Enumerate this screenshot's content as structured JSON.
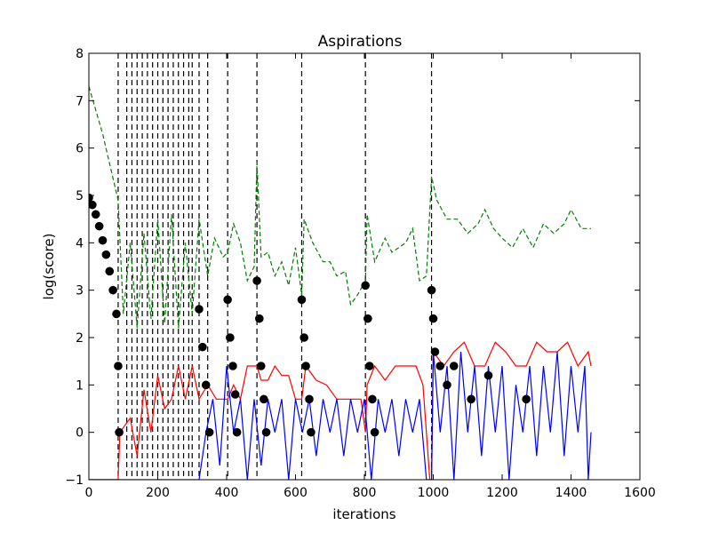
{
  "chart_data": {
    "type": "line",
    "title": "Aspirations",
    "xlabel": "iterations",
    "ylabel": "log(score)",
    "xlim": [
      0,
      1600
    ],
    "ylim": [
      -1,
      8
    ],
    "x_ticks": [
      0,
      200,
      400,
      600,
      800,
      1000,
      1200,
      1400,
      1600
    ],
    "y_ticks": [
      -1,
      0,
      1,
      2,
      3,
      4,
      5,
      6,
      7,
      8
    ],
    "grid": false,
    "legend": "none",
    "colors": {
      "red_series": "#ff0000",
      "blue_series": "#0000ff",
      "green_series": "#008000",
      "markers": "#000000",
      "restart_lines": "#000000"
    },
    "restart_iterations": [
      85,
      110,
      125,
      140,
      155,
      170,
      185,
      200,
      215,
      230,
      245,
      260,
      275,
      290,
      300,
      320,
      345,
      403,
      488,
      618,
      803,
      995
    ],
    "series": [
      {
        "style": "dashed",
        "color": "green",
        "points": [
          [
            0,
            7.3
          ],
          [
            40,
            6.3
          ],
          [
            85,
            4.9
          ],
          [
            100,
            2.5
          ],
          [
            120,
            4.0
          ],
          [
            140,
            2.2
          ],
          [
            160,
            4.2
          ],
          [
            180,
            2.4
          ],
          [
            200,
            4.5
          ],
          [
            220,
            2.3
          ],
          [
            240,
            4.6
          ],
          [
            260,
            2.2
          ],
          [
            280,
            4.0
          ],
          [
            300,
            2.5
          ],
          [
            320,
            4.5
          ],
          [
            345,
            3.3
          ],
          [
            365,
            4.1
          ],
          [
            390,
            3.7
          ],
          [
            403,
            3.8
          ],
          [
            420,
            4.4
          ],
          [
            440,
            4.0
          ],
          [
            460,
            3.2
          ],
          [
            480,
            3.5
          ],
          [
            488,
            5.7
          ],
          [
            500,
            3.7
          ],
          [
            520,
            3.8
          ],
          [
            540,
            3.3
          ],
          [
            560,
            3.6
          ],
          [
            580,
            3.1
          ],
          [
            600,
            3.9
          ],
          [
            618,
            2.9
          ],
          [
            625,
            4.5
          ],
          [
            650,
            4.0
          ],
          [
            680,
            3.6
          ],
          [
            700,
            3.6
          ],
          [
            720,
            3.3
          ],
          [
            745,
            3.4
          ],
          [
            760,
            2.7
          ],
          [
            780,
            2.9
          ],
          [
            803,
            3.2
          ],
          [
            808,
            4.6
          ],
          [
            830,
            3.6
          ],
          [
            860,
            4.1
          ],
          [
            880,
            3.8
          ],
          [
            900,
            3.9
          ],
          [
            920,
            4.0
          ],
          [
            940,
            4.3
          ],
          [
            960,
            3.2
          ],
          [
            980,
            3.3
          ],
          [
            995,
            5.4
          ],
          [
            1010,
            4.9
          ],
          [
            1040,
            4.5
          ],
          [
            1070,
            4.5
          ],
          [
            1100,
            4.2
          ],
          [
            1130,
            4.4
          ],
          [
            1150,
            4.7
          ],
          [
            1175,
            4.3
          ],
          [
            1200,
            4.1
          ],
          [
            1230,
            3.9
          ],
          [
            1260,
            4.3
          ],
          [
            1290,
            3.9
          ],
          [
            1320,
            4.4
          ],
          [
            1350,
            4.2
          ],
          [
            1380,
            4.4
          ],
          [
            1400,
            4.7
          ],
          [
            1430,
            4.3
          ],
          [
            1458,
            4.3
          ]
        ]
      },
      {
        "style": "solid",
        "color": "red",
        "points": [
          [
            0,
            -1
          ],
          [
            85,
            -1
          ],
          [
            90,
            0.0
          ],
          [
            120,
            0.3
          ],
          [
            140,
            -0.5
          ],
          [
            160,
            0.9
          ],
          [
            180,
            0.0
          ],
          [
            200,
            1.2
          ],
          [
            220,
            0.5
          ],
          [
            240,
            0.7
          ],
          [
            260,
            1.4
          ],
          [
            280,
            0.7
          ],
          [
            300,
            1.4
          ],
          [
            320,
            0.7
          ],
          [
            345,
            1.0
          ],
          [
            370,
            0.7
          ],
          [
            403,
            0.7
          ],
          [
            420,
            1.0
          ],
          [
            440,
            0.7
          ],
          [
            460,
            1.4
          ],
          [
            488,
            1.4
          ],
          [
            500,
            1.1
          ],
          [
            520,
            1.1
          ],
          [
            540,
            1.4
          ],
          [
            560,
            1.2
          ],
          [
            580,
            1.2
          ],
          [
            600,
            0.7
          ],
          [
            618,
            0.7
          ],
          [
            630,
            1.4
          ],
          [
            660,
            1.1
          ],
          [
            690,
            1.0
          ],
          [
            720,
            0.7
          ],
          [
            760,
            0.7
          ],
          [
            790,
            0.7
          ],
          [
            803,
            0.0
          ],
          [
            808,
            1.0
          ],
          [
            830,
            1.4
          ],
          [
            860,
            1.1
          ],
          [
            890,
            1.4
          ],
          [
            920,
            1.4
          ],
          [
            950,
            1.4
          ],
          [
            970,
            1.0
          ],
          [
            990,
            -1
          ],
          [
            995,
            -1
          ],
          [
            1000,
            1.7
          ],
          [
            1030,
            1.4
          ],
          [
            1060,
            1.7
          ],
          [
            1090,
            1.9
          ],
          [
            1120,
            1.4
          ],
          [
            1150,
            1.4
          ],
          [
            1180,
            1.9
          ],
          [
            1210,
            1.7
          ],
          [
            1240,
            1.4
          ],
          [
            1270,
            1.4
          ],
          [
            1300,
            1.9
          ],
          [
            1330,
            1.7
          ],
          [
            1360,
            1.7
          ],
          [
            1390,
            1.9
          ],
          [
            1420,
            1.4
          ],
          [
            1450,
            1.7
          ],
          [
            1458,
            1.4
          ]
        ]
      },
      {
        "style": "solid",
        "color": "blue",
        "points": [
          [
            0,
            -1
          ],
          [
            320,
            -1
          ],
          [
            340,
            0.0
          ],
          [
            360,
            0.7
          ],
          [
            380,
            -0.7
          ],
          [
            400,
            1.4
          ],
          [
            420,
            0.0
          ],
          [
            440,
            0.7
          ],
          [
            460,
            -1
          ],
          [
            480,
            0.7
          ],
          [
            500,
            -0.7
          ],
          [
            520,
            0.7
          ],
          [
            540,
            0.0
          ],
          [
            560,
            0.7
          ],
          [
            580,
            -1
          ],
          [
            600,
            0.7
          ],
          [
            620,
            0.0
          ],
          [
            640,
            0.7
          ],
          [
            660,
            -0.5
          ],
          [
            680,
            0.7
          ],
          [
            700,
            0.0
          ],
          [
            720,
            0.7
          ],
          [
            740,
            -0.5
          ],
          [
            760,
            0.7
          ],
          [
            780,
            0.0
          ],
          [
            800,
            0.7
          ],
          [
            820,
            -1
          ],
          [
            840,
            0.7
          ],
          [
            860,
            0.0
          ],
          [
            880,
            0.7
          ],
          [
            900,
            -0.5
          ],
          [
            920,
            0.7
          ],
          [
            940,
            0.0
          ],
          [
            960,
            0.7
          ],
          [
            980,
            -1
          ],
          [
            995,
            -1
          ],
          [
            1000,
            1.7
          ],
          [
            1020,
            0.0
          ],
          [
            1040,
            1.4
          ],
          [
            1060,
            -1
          ],
          [
            1080,
            1.7
          ],
          [
            1100,
            0.0
          ],
          [
            1120,
            1.4
          ],
          [
            1140,
            -0.5
          ],
          [
            1160,
            1.4
          ],
          [
            1180,
            0.0
          ],
          [
            1200,
            1.4
          ],
          [
            1220,
            -1
          ],
          [
            1240,
            1.0
          ],
          [
            1260,
            0.0
          ],
          [
            1280,
            1.4
          ],
          [
            1300,
            -0.5
          ],
          [
            1320,
            1.4
          ],
          [
            1340,
            0.0
          ],
          [
            1360,
            1.7
          ],
          [
            1380,
            -0.5
          ],
          [
            1400,
            1.4
          ],
          [
            1420,
            0.0
          ],
          [
            1440,
            1.4
          ],
          [
            1450,
            -1
          ],
          [
            1458,
            0.0
          ]
        ]
      },
      {
        "style": "markers",
        "color": "black",
        "points": [
          [
            0,
            4.95
          ],
          [
            10,
            4.8
          ],
          [
            20,
            4.6
          ],
          [
            30,
            4.35
          ],
          [
            40,
            4.05
          ],
          [
            50,
            3.75
          ],
          [
            60,
            3.4
          ],
          [
            70,
            3.0
          ],
          [
            80,
            2.5
          ],
          [
            85,
            1.4
          ],
          [
            88,
            0.0
          ],
          [
            320,
            2.6
          ],
          [
            330,
            1.8
          ],
          [
            340,
            1.0
          ],
          [
            350,
            0.0
          ],
          [
            403,
            2.8
          ],
          [
            410,
            2.0
          ],
          [
            418,
            1.4
          ],
          [
            425,
            0.8
          ],
          [
            430,
            0.0
          ],
          [
            488,
            3.2
          ],
          [
            495,
            2.4
          ],
          [
            500,
            1.4
          ],
          [
            508,
            0.7
          ],
          [
            515,
            0.0
          ],
          [
            618,
            2.8
          ],
          [
            625,
            2.0
          ],
          [
            630,
            1.4
          ],
          [
            640,
            0.7
          ],
          [
            645,
            0.0
          ],
          [
            803,
            3.1
          ],
          [
            810,
            2.4
          ],
          [
            815,
            1.4
          ],
          [
            823,
            0.7
          ],
          [
            830,
            0.0
          ],
          [
            995,
            3.0
          ],
          [
            1000,
            2.4
          ],
          [
            1005,
            1.7
          ],
          [
            1020,
            1.4
          ],
          [
            1040,
            1.0
          ],
          [
            1060,
            1.4
          ],
          [
            1110,
            0.7
          ],
          [
            1160,
            1.2
          ],
          [
            1270,
            0.7
          ]
        ]
      }
    ]
  }
}
